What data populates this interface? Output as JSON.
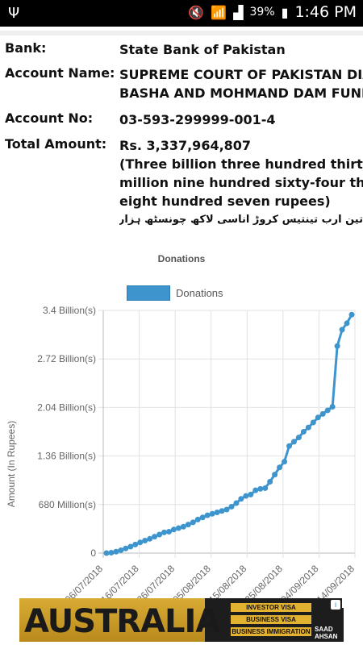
{
  "status_bar": {
    "usb_icon": "usb-icon",
    "battery": "39%",
    "time": "1:46 PM"
  },
  "account": {
    "bank_label": "Bank:",
    "bank_value": "State Bank of Pakistan",
    "name_label": "Account Name:",
    "name_line1": "SUPREME COURT OF PAKISTAN DIAMER",
    "name_line2": "BASHA AND MOHMAND DAM FUND",
    "no_label": "Account No:",
    "no_value": "03-593-299999-001-4",
    "total_label": "Total Amount:",
    "total_value": "Rs. 3,337,964,807",
    "words_line1": "(Three billion three hundred thirty-seven",
    "words_line2": "million nine hundred sixty-four thousand",
    "words_line3": "eight hundred seven rupees)",
    "urdu": "تین ارب تینتیس کروڑ اناسی لاکھ چونسٹھ ہزار آٹھ سو سات روپے)"
  },
  "chart_data": {
    "type": "line",
    "title": "Donations",
    "ylabel": "Amount (In Rupees)",
    "ylim": [
      0,
      3400000000
    ],
    "y_ticks": [
      {
        "value": 0,
        "label": "0"
      },
      {
        "value": 680000000,
        "label": "680 Million(s)"
      },
      {
        "value": 1360000000,
        "label": "1.36 Billion(s)"
      },
      {
        "value": 2040000000,
        "label": "2.04 Billion(s)"
      },
      {
        "value": 2720000000,
        "label": "2.72 Billion(s)"
      },
      {
        "value": 3400000000,
        "label": "3.4 Billion(s)"
      }
    ],
    "x_ticks": [
      "06/07/2018",
      "16/07/2018",
      "26/07/2018",
      "05/08/2018",
      "15/08/2018",
      "25/08/2018",
      "04/09/2018",
      "14/09/2018"
    ],
    "series": [
      {
        "name": "Donations",
        "values": [
          0,
          5000000,
          20000000,
          40000000,
          65000000,
          90000000,
          120000000,
          150000000,
          175000000,
          200000000,
          230000000,
          260000000,
          290000000,
          300000000,
          330000000,
          350000000,
          370000000,
          400000000,
          430000000,
          470000000,
          500000000,
          530000000,
          550000000,
          570000000,
          590000000,
          610000000,
          650000000,
          700000000,
          760000000,
          800000000,
          820000000,
          880000000,
          900000000,
          910000000,
          1000000000,
          1100000000,
          1200000000,
          1280000000,
          1500000000,
          1560000000,
          1620000000,
          1700000000,
          1760000000,
          1830000000,
          1900000000,
          1950000000,
          2000000000,
          2050000000,
          2900000000,
          3130000000,
          3220000000,
          3340000000
        ]
      }
    ]
  },
  "ad": {
    "word": "AUSTRALIA",
    "btn1": "INVESTOR VISA",
    "btn2": "BUSINESS VISA",
    "btn3": "BUSINESS IMMIGRATION",
    "brand": "SAAD AHSAN",
    "info": "i",
    "close": "✕"
  }
}
